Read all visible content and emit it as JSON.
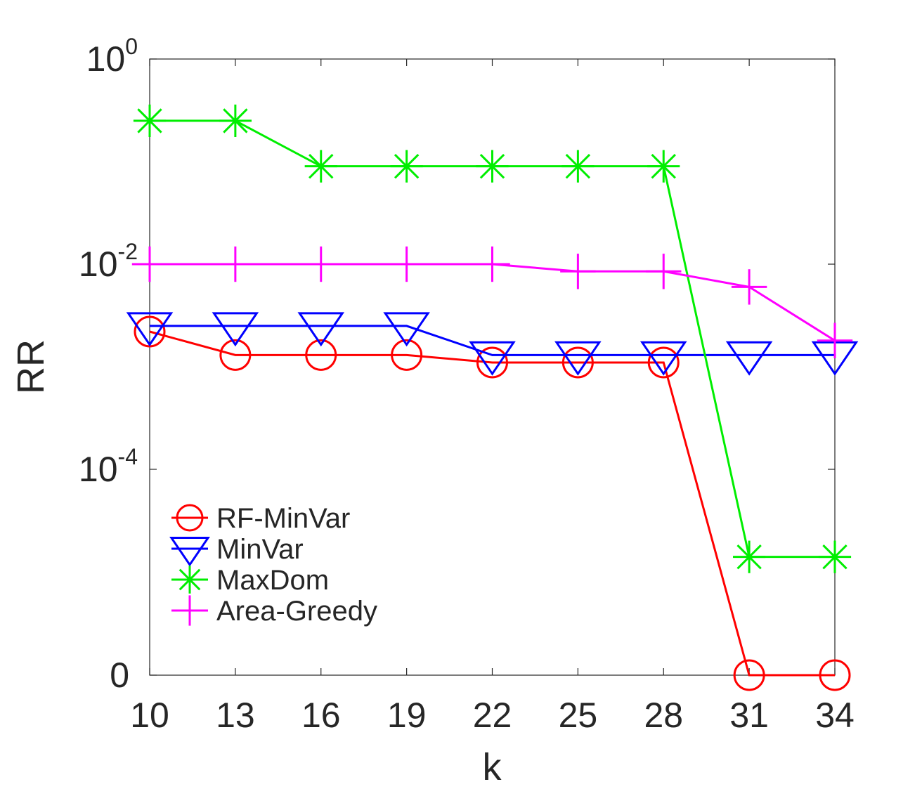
{
  "chart_data": {
    "type": "line",
    "xlabel": "k",
    "ylabel": "RR",
    "x": [
      10,
      13,
      16,
      19,
      22,
      25,
      28,
      31,
      34
    ],
    "xlim": [
      10,
      34
    ],
    "yscale": "log",
    "ylim": [
      0,
      1
    ],
    "ytick_labels": [
      {
        "value": 1,
        "base": "10",
        "exp": "0"
      },
      {
        "value": 0.01,
        "base": "10",
        "exp": "-2"
      },
      {
        "value": 0.0001,
        "base": "10",
        "exp": "-4"
      },
      {
        "value": 0,
        "base": "0",
        "exp": ""
      }
    ],
    "grid": false,
    "box": true,
    "legend_position": "lower-left",
    "series": [
      {
        "name": "RF-MinVar",
        "color": "#ff0000",
        "marker": "circle",
        "values": [
          0.0022,
          0.0013,
          0.0013,
          0.0013,
          0.0011,
          0.0011,
          0.0011,
          0,
          0
        ]
      },
      {
        "name": "MinVar",
        "color": "#0000ff",
        "marker": "triangle-down",
        "values": [
          0.0025,
          0.0025,
          0.0025,
          0.0025,
          0.0013,
          0.0013,
          0.0013,
          0.0013,
          0.0013
        ]
      },
      {
        "name": "MaxDom",
        "color": "#00ee00",
        "marker": "asterisk",
        "values": [
          0.25,
          0.25,
          0.09,
          0.09,
          0.09,
          0.09,
          0.09,
          1.4e-05,
          1.4e-05
        ]
      },
      {
        "name": "Area-Greedy",
        "color": "#ff00ff",
        "marker": "plus",
        "values": [
          0.01,
          0.01,
          0.01,
          0.01,
          0.01,
          0.0085,
          0.0085,
          0.006,
          0.0018
        ]
      }
    ]
  }
}
